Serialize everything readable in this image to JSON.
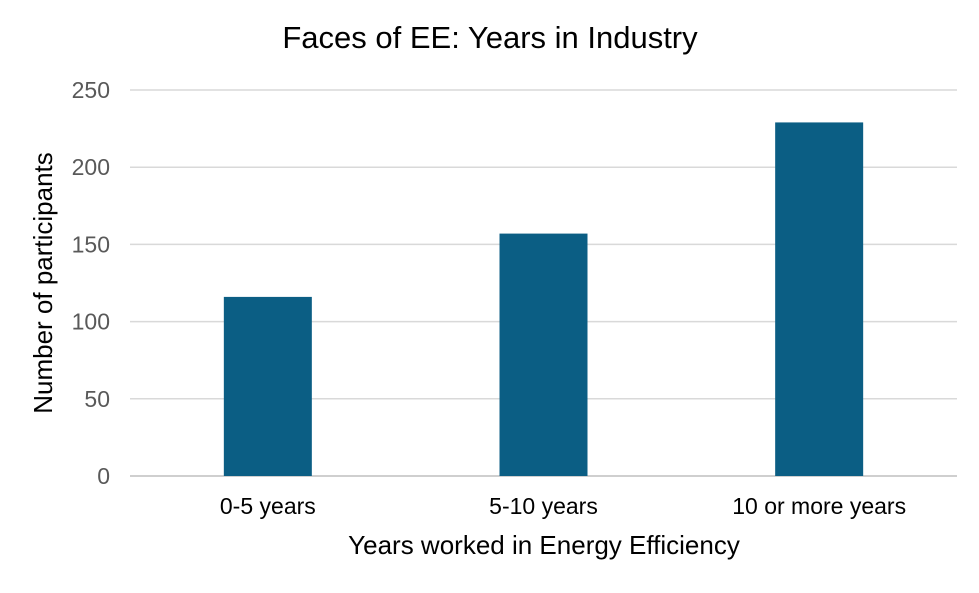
{
  "chart_data": {
    "type": "bar",
    "title": "Faces of EE: Years in Industry",
    "xlabel": "Years worked in Energy Efficiency",
    "ylabel": "Number of participants",
    "categories": [
      "0-5 years",
      "5-10 years",
      "10 or more years"
    ],
    "values": [
      116,
      157,
      229
    ],
    "ylim": [
      0,
      250
    ],
    "yticks": [
      0,
      50,
      100,
      150,
      200,
      250
    ],
    "grid": true,
    "legend": "none",
    "bar_color": "#0b5e84"
  }
}
